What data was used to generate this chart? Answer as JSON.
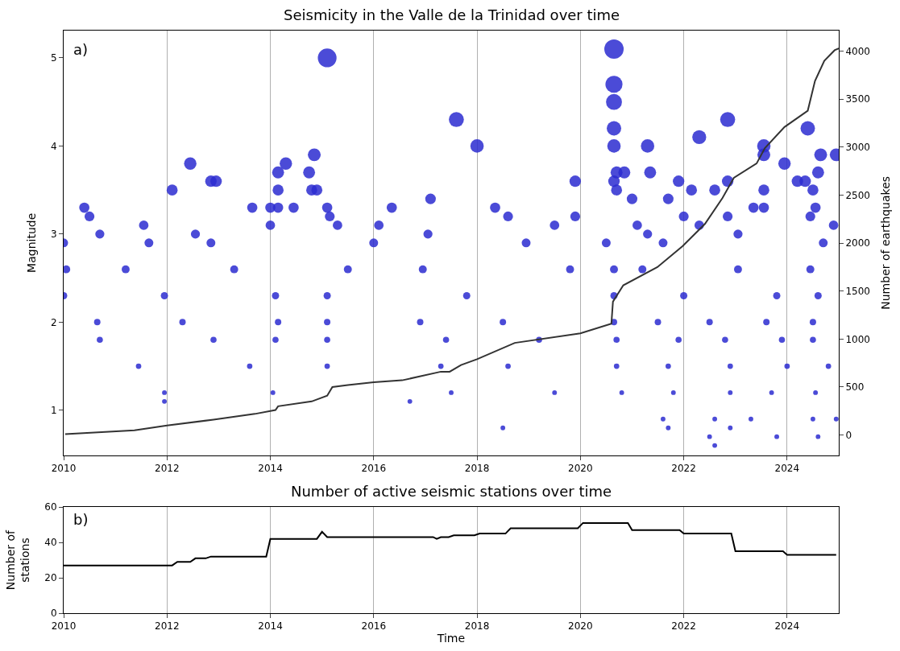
{
  "chart_data": [
    {
      "type": "bubble",
      "title": "Seismicity in the Valle de la Trinidad over time",
      "ylabel": "Magnitude",
      "y2label": "Number of earthquakes",
      "annotations": [
        "a)"
      ],
      "xlim": [
        2010,
        2025
      ],
      "xticks": [
        2010,
        2012,
        2014,
        2016,
        2018,
        2020,
        2022,
        2024
      ],
      "ylim": [
        0.49,
        5.31
      ],
      "yticks": [
        1,
        2,
        3,
        4,
        5
      ],
      "y2lim": [
        -210,
        4215
      ],
      "y2ticks": [
        0,
        500,
        1000,
        1500,
        2000,
        2500,
        3000,
        3500,
        4000
      ],
      "grid": "x",
      "series": [
        {
          "type": "bubble",
          "color": "#2b2bd0",
          "x": [
            2015.1,
            2020.65,
            2020.65,
            2020.65,
            2020.65,
            2020.65,
            2017.6,
            2018.0,
            2022.85,
            2022.3,
            2024.4,
            2021.3,
            2023.55,
            2023.55,
            2024.65,
            2024.95,
            2014.85,
            2014.3,
            2012.45,
            2023.95,
            2014.15,
            2014.75,
            2020.7,
            2020.85,
            2021.35,
            2024.6,
            2012.85,
            2012.95,
            2019.9,
            2020.65,
            2021.9,
            2022.85,
            2024.2,
            2024.35,
            2012.1,
            2014.15,
            2014.8,
            2014.9,
            2020.7,
            2022.15,
            2022.6,
            2023.55,
            2024.5,
            2017.1,
            2021.0,
            2021.7,
            2010.4,
            2010.5,
            2013.65,
            2014.0,
            2014.15,
            2014.45,
            2015.1,
            2016.35,
            2018.35,
            2023.35,
            2023.55,
            2024.55,
            2015.15,
            2018.6,
            2019.9,
            2022.0,
            2022.85,
            2024.45,
            2011.55,
            2014.0,
            2015.3,
            2016.1,
            2019.5,
            2021.1,
            2022.3,
            2024.9,
            2010.7,
            2012.55,
            2017.05,
            2021.3,
            2023.05,
            2010.0,
            2011.65,
            2012.85,
            2016.0,
            2018.95,
            2020.5,
            2021.6,
            2024.7,
            2010.05,
            2011.2,
            2013.3,
            2015.5,
            2016.95,
            2019.8,
            2020.65,
            2021.2,
            2023.05,
            2024.45,
            2010.0,
            2011.95,
            2014.1,
            2015.1,
            2017.8,
            2020.65,
            2022.0,
            2023.8,
            2024.6,
            2010.65,
            2012.3,
            2014.15,
            2015.1,
            2016.9,
            2018.5,
            2020.65,
            2021.5,
            2022.5,
            2023.6,
            2024.5,
            2010.7,
            2012.9,
            2014.1,
            2015.1,
            2017.4,
            2019.2,
            2020.7,
            2021.9,
            2022.8,
            2023.9,
            2024.5,
            2011.45,
            2013.6,
            2015.1,
            2017.3,
            2018.6,
            2020.7,
            2021.7,
            2022.9,
            2024.0,
            2024.8,
            2011.95,
            2014.05,
            2017.5,
            2019.5,
            2020.8,
            2021.8,
            2022.9,
            2023.7,
            2024.55,
            2011.95,
            2016.7,
            2021.6,
            2022.6,
            2023.3,
            2024.5,
            2024.95,
            2018.5,
            2021.7,
            2022.9,
            2022.5,
            2023.8,
            2024.6,
            2022.6
          ],
          "values": [
            5.0,
            5.1,
            4.7,
            4.5,
            4.2,
            4.0,
            4.3,
            4.0,
            4.3,
            4.1,
            4.2,
            4.0,
            4.0,
            3.9,
            3.9,
            3.9,
            3.9,
            3.8,
            3.8,
            3.8,
            3.7,
            3.7,
            3.7,
            3.7,
            3.7,
            3.7,
            3.6,
            3.6,
            3.6,
            3.6,
            3.6,
            3.6,
            3.6,
            3.6,
            3.5,
            3.5,
            3.5,
            3.5,
            3.5,
            3.5,
            3.5,
            3.5,
            3.5,
            3.4,
            3.4,
            3.4,
            3.3,
            3.2,
            3.3,
            3.3,
            3.3,
            3.3,
            3.3,
            3.3,
            3.3,
            3.3,
            3.3,
            3.3,
            3.2,
            3.2,
            3.2,
            3.2,
            3.2,
            3.2,
            3.1,
            3.1,
            3.1,
            3.1,
            3.1,
            3.1,
            3.1,
            3.1,
            3.0,
            3.0,
            3.0,
            3.0,
            3.0,
            2.9,
            2.9,
            2.9,
            2.9,
            2.9,
            2.9,
            2.9,
            2.9,
            2.6,
            2.6,
            2.6,
            2.6,
            2.6,
            2.6,
            2.6,
            2.6,
            2.6,
            2.6,
            2.3,
            2.3,
            2.3,
            2.3,
            2.3,
            2.3,
            2.3,
            2.3,
            2.3,
            2.0,
            2.0,
            2.0,
            2.0,
            2.0,
            2.0,
            2.0,
            2.0,
            2.0,
            2.0,
            2.0,
            1.8,
            1.8,
            1.8,
            1.8,
            1.8,
            1.8,
            1.8,
            1.8,
            1.8,
            1.8,
            1.8,
            1.5,
            1.5,
            1.5,
            1.5,
            1.5,
            1.5,
            1.5,
            1.5,
            1.5,
            1.5,
            1.2,
            1.2,
            1.2,
            1.2,
            1.2,
            1.2,
            1.2,
            1.2,
            1.2,
            1.1,
            1.1,
            0.9,
            0.9,
            0.9,
            0.9,
            0.9,
            0.8,
            0.8,
            0.8,
            0.7,
            0.7,
            0.7,
            0.6
          ],
          "sizes": [
            0.94,
            1,
            0.78,
            0.68,
            0.56,
            0.48,
            0.6,
            0.48,
            0.6,
            0.52,
            0.56,
            0.48,
            0.48,
            0.44,
            0.44,
            0.44,
            0.44,
            0.41,
            0.41,
            0.41,
            0.38,
            0.38,
            0.38,
            0.38,
            0.38,
            0.38,
            0.35,
            0.35,
            0.35,
            0.35,
            0.35,
            0.35,
            0.35,
            0.35,
            0.32,
            0.32,
            0.32,
            0.32,
            0.32,
            0.32,
            0.32,
            0.32,
            0.32,
            0.3,
            0.3,
            0.3,
            0.28,
            0.26,
            0.28,
            0.28,
            0.28,
            0.28,
            0.28,
            0.28,
            0.28,
            0.28,
            0.28,
            0.28,
            0.26,
            0.26,
            0.26,
            0.26,
            0.26,
            0.26,
            0.24,
            0.24,
            0.24,
            0.24,
            0.24,
            0.24,
            0.24,
            0.24,
            0.22,
            0.22,
            0.22,
            0.22,
            0.22,
            0.21,
            0.21,
            0.21,
            0.21,
            0.21,
            0.21,
            0.21,
            0.21,
            0.17,
            0.17,
            0.17,
            0.17,
            0.17,
            0.17,
            0.17,
            0.17,
            0.17,
            0.17,
            0.14,
            0.14,
            0.14,
            0.14,
            0.14,
            0.14,
            0.14,
            0.14,
            0.14,
            0.11,
            0.11,
            0.11,
            0.11,
            0.11,
            0.11,
            0.11,
            0.11,
            0.11,
            0.11,
            0.11,
            0.1,
            0.1,
            0.1,
            0.1,
            0.1,
            0.1,
            0.1,
            0.1,
            0.1,
            0.1,
            0.1,
            0.08,
            0.08,
            0.08,
            0.08,
            0.08,
            0.08,
            0.08,
            0.08,
            0.08,
            0.08,
            0.06,
            0.06,
            0.06,
            0.06,
            0.06,
            0.06,
            0.06,
            0.06,
            0.06,
            0.06,
            0.06,
            0.06,
            0.06,
            0.06,
            0.06,
            0.06,
            0.06,
            0.06,
            0.06,
            0.06,
            0.06,
            0.06,
            0.06
          ]
        },
        {
          "type": "line",
          "axis": "y2",
          "color": "#333333",
          "x": [
            2010.03,
            2011.37,
            2012.0,
            2012.9,
            2013.7,
            2014.1,
            2014.15,
            2014.8,
            2015.1,
            2015.2,
            2015.5,
            2016.0,
            2016.55,
            2017.3,
            2017.47,
            2017.69,
            2018.0,
            2018.73,
            2020.0,
            2020.6,
            2020.63,
            2020.83,
            2021.49,
            2021.98,
            2022.41,
            2022.75,
            2022.97,
            2023.41,
            2023.57,
            2023.95,
            2024.4,
            2024.54,
            2024.72,
            2024.92,
            2025.0
          ],
          "values": [
            10,
            50,
            100,
            160,
            220,
            260,
            300,
            350,
            410,
            500,
            520,
            550,
            570,
            660,
            660,
            730,
            790,
            960,
            1060,
            1160,
            1390,
            1560,
            1750,
            1970,
            2200,
            2470,
            2680,
            2830,
            2990,
            3210,
            3380,
            3690,
            3900,
            4010,
            4030
          ]
        }
      ]
    },
    {
      "type": "line",
      "title": "Number of active seismic stations over time",
      "xlabel": "Time",
      "ylabel": "Number of\nstations",
      "annotations": [
        "b)"
      ],
      "xlim": [
        2010,
        2025
      ],
      "xticks": [
        2010,
        2012,
        2014,
        2016,
        2018,
        2020,
        2022,
        2024
      ],
      "ylim": [
        0,
        60
      ],
      "yticks": [
        0,
        20,
        40,
        60
      ],
      "grid": "x",
      "series": [
        {
          "color": "#000000",
          "x": [
            2010.0,
            2012.1,
            2012.2,
            2012.45,
            2012.55,
            2012.75,
            2012.85,
            2013.92,
            2014.0,
            2014.9,
            2015.0,
            2015.1,
            2017.15,
            2017.22,
            2017.3,
            2017.45,
            2017.55,
            2017.95,
            2018.05,
            2018.55,
            2018.65,
            2019.95,
            2020.05,
            2020.92,
            2021.0,
            2021.92,
            2022.0,
            2022.92,
            2023.0,
            2023.92,
            2024.0,
            2024.95
          ],
          "values": [
            27,
            27,
            29,
            29,
            31,
            31,
            32,
            32,
            42,
            42,
            46,
            43,
            43,
            42,
            43,
            43,
            44,
            44,
            45,
            45,
            48,
            48,
            51,
            51,
            47,
            47,
            45,
            45,
            35,
            35,
            33,
            33
          ]
        }
      ]
    }
  ]
}
